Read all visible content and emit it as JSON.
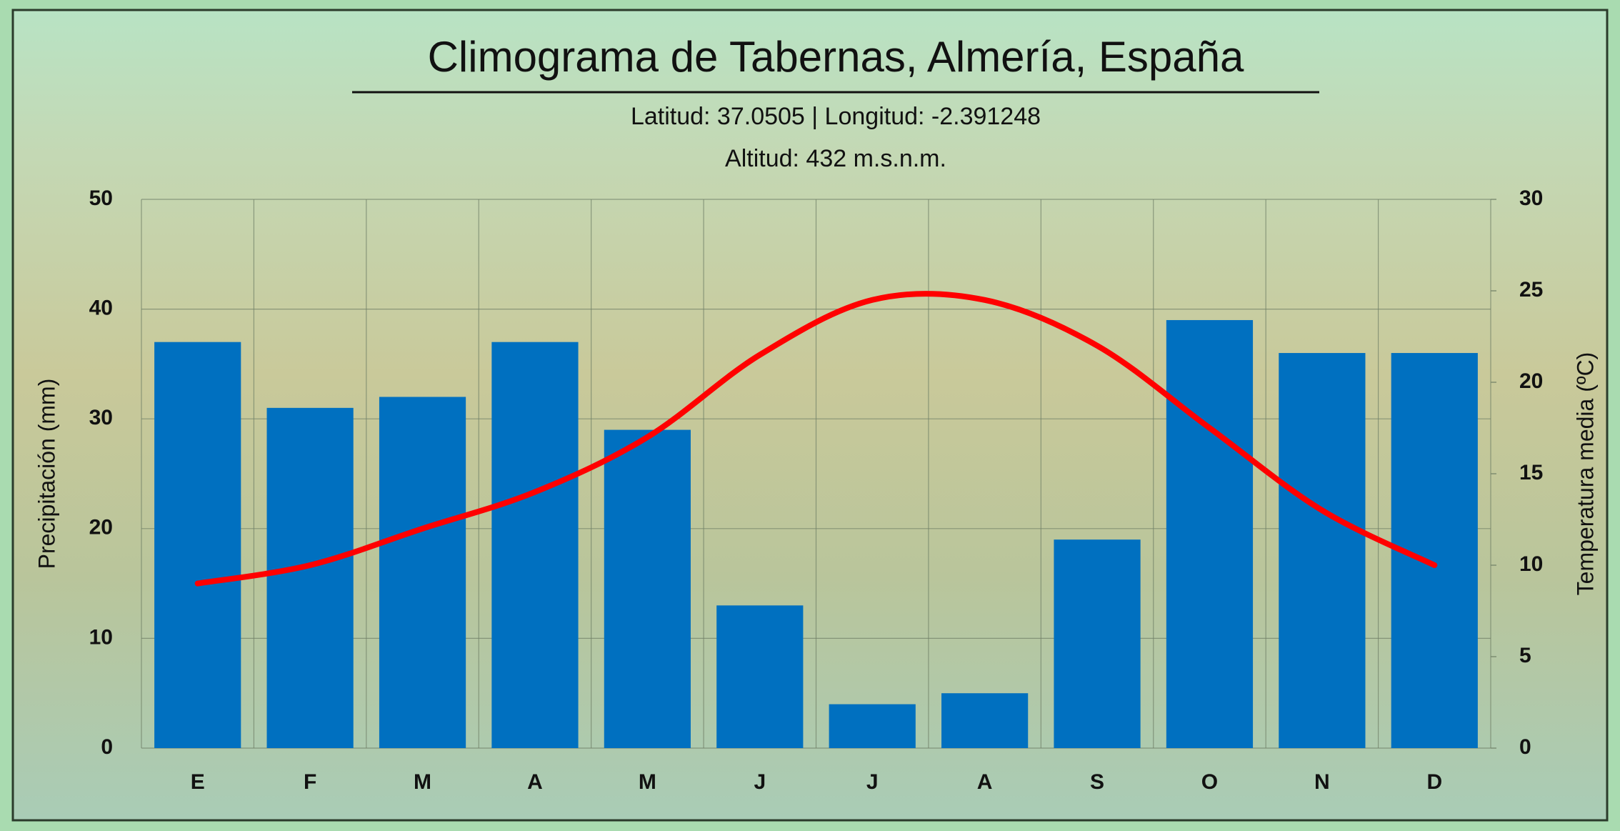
{
  "chart_data": {
    "type": "climograph",
    "title": "Climograma de Tabernas, Almería, España",
    "subtitle": [
      "Latitud: 37.0505 | Longitud: -2.391248",
      "Altitud: 432 m.s.n.m."
    ],
    "y_label": "Precipitación (mm)",
    "y2_label": "Temperatura media (ºC)",
    "categories": [
      "E",
      "F",
      "M",
      "A",
      "M",
      "J",
      "J",
      "A",
      "S",
      "O",
      "N",
      "D"
    ],
    "series": [
      {
        "type": "bar",
        "color": "#0070c0",
        "values": [
          37,
          31,
          32,
          37,
          29,
          13,
          4,
          5,
          19,
          39,
          36,
          36
        ]
      },
      {
        "type": "line",
        "axis": "y2",
        "color": "#ff0000",
        "values": [
          9,
          10,
          12,
          14,
          17,
          21.5,
          24.5,
          24.5,
          22,
          17.5,
          13,
          10
        ]
      }
    ],
    "ylim": [
      0,
      50
    ],
    "yticks": [
      0,
      10,
      20,
      30,
      40,
      50
    ],
    "y2lim": [
      0,
      30
    ],
    "y2ticks": [
      0,
      5,
      10,
      15,
      20,
      25,
      30
    ],
    "grid": true
  }
}
